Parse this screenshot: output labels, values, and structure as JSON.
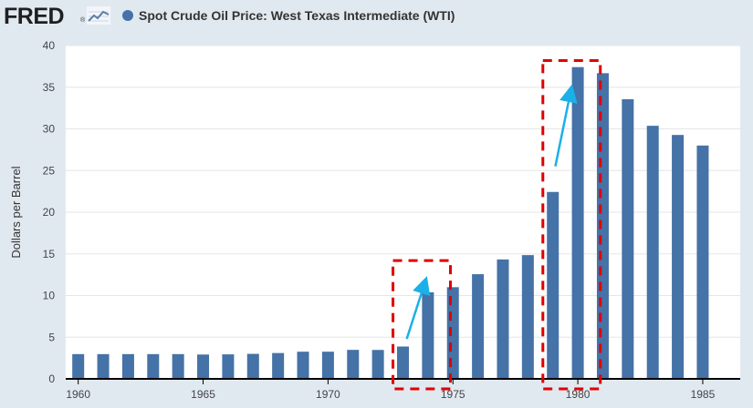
{
  "logo": {
    "text": "FRED",
    "reg": "®",
    "icon": "trend-line-icon"
  },
  "colors": {
    "background": "#e1e9f0",
    "plot_background": "#ffffff",
    "bar": "#4572a7",
    "gridline": "#e6e6e6",
    "axis": "#000000",
    "highlight_box": "#e00000",
    "arrow": "#1ab0e8"
  },
  "chart_data": {
    "type": "bar",
    "title": "Spot Crude Oil Price: West Texas Intermediate (WTI)",
    "ylabel": "Dollars per Barrel",
    "xlabel": "",
    "ylim": [
      0,
      40
    ],
    "yticks": [
      0,
      5,
      10,
      15,
      20,
      25,
      30,
      35,
      40
    ],
    "xlim": [
      1959.5,
      1986.5
    ],
    "xticks": [
      1960,
      1965,
      1970,
      1975,
      1980,
      1985
    ],
    "grid": true,
    "legend": "top-left",
    "series": [
      {
        "name": "Spot Crude Oil Price: West Texas Intermediate (WTI)",
        "x": [
          1960,
          1961,
          1962,
          1963,
          1964,
          1965,
          1966,
          1967,
          1968,
          1969,
          1970,
          1971,
          1972,
          1973,
          1974,
          1975,
          1976,
          1977,
          1978,
          1979,
          1980,
          1981,
          1982,
          1983,
          1984,
          1985
        ],
        "values": [
          2.97,
          2.97,
          2.97,
          2.97,
          2.97,
          2.92,
          2.94,
          3.0,
          3.1,
          3.26,
          3.26,
          3.48,
          3.47,
          3.88,
          10.39,
          11.0,
          12.56,
          14.33,
          14.85,
          22.43,
          37.41,
          36.68,
          33.56,
          30.37,
          29.27,
          28.0
        ]
      }
    ],
    "annotations": [
      {
        "type": "dashed-box",
        "x_from": 1972.6,
        "x_to": 1974.9,
        "y_from": -1.2,
        "y_to": 14.2
      },
      {
        "type": "dashed-box",
        "x_from": 1978.6,
        "x_to": 1980.9,
        "y_from": -1.2,
        "y_to": 38.2
      },
      {
        "type": "arrow",
        "x_from": 1973.15,
        "y_from": 4.8,
        "x_to": 1973.85,
        "y_to": 11.3
      },
      {
        "type": "arrow",
        "x_from": 1979.1,
        "y_from": 25.5,
        "x_to": 1979.7,
        "y_to": 34.3
      }
    ]
  }
}
